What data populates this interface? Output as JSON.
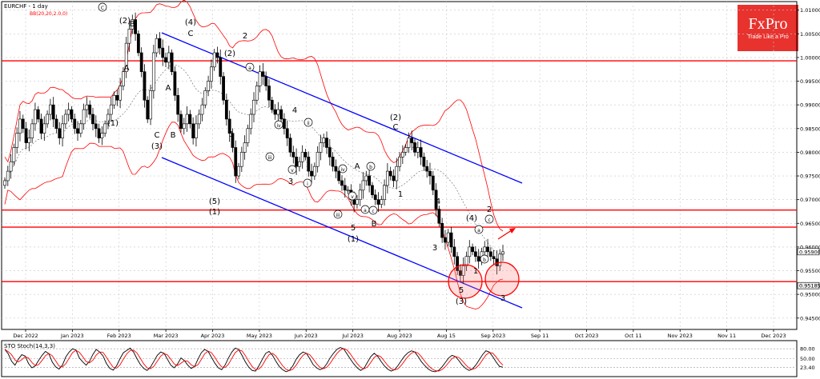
{
  "header": {
    "symbol": "EURCHF - 1 day",
    "indicator": "BB(20,20,2.0,0)"
  },
  "logo": {
    "brand": "FxPro",
    "tagline": "Trade Like a Pro"
  },
  "colors": {
    "bull_candle": "#ffffff",
    "bear_candle": "#000000",
    "sr_line": "#ff0000",
    "channel": "#0000ff",
    "bands": "#ff0000",
    "sto_main": "#000000",
    "sto_signal": "#ff0000"
  },
  "chart_data": {
    "type": "candlestick",
    "title": "EURCHF - 1 day",
    "y_ticks": [
      "1.01000",
      "1.00500",
      "1.00000",
      "0.99500",
      "0.99000",
      "0.98500",
      "0.98000",
      "0.97500",
      "0.97000",
      "0.96500",
      "0.96000",
      "0.95500",
      "0.95000",
      "0.94500"
    ],
    "ylim": [
      0.9426,
      1.0118
    ],
    "x_ticks": [
      "Dec 2022",
      "Jan 2023",
      "Feb 2023",
      "Mar 2023",
      "Apr 2023",
      "May 2023",
      "Jun 2023",
      "Jul 2023",
      "Aug 2023",
      "Aug 15",
      "Sep 2023",
      "Sep 11",
      "Oct 2023",
      "Oct 11",
      "Nov 2023",
      "Nov 11",
      "Dec 2023"
    ],
    "price_tags": [
      "0.95900",
      "0.95185"
    ],
    "support_resistance": [
      0.9993,
      0.9678,
      0.9642,
      0.9527
    ],
    "closes": [
      0.974,
      0.976,
      0.978,
      0.981,
      0.984,
      0.987,
      0.985,
      0.982,
      0.983,
      0.986,
      0.989,
      0.987,
      0.984,
      0.986,
      0.988,
      0.99,
      0.987,
      0.985,
      0.983,
      0.986,
      0.988,
      0.989,
      0.987,
      0.985,
      0.984,
      0.986,
      0.989,
      0.99,
      0.988,
      0.986,
      0.985,
      0.983,
      0.984,
      0.986,
      0.988,
      0.99,
      0.992,
      0.991,
      0.994,
      0.997,
      1.003,
      1.006,
      1.008,
      1.005,
      1.001,
      0.997,
      0.991,
      0.987,
      0.993,
      1.001,
      1.004,
      1.002,
      1.0,
      0.999,
      1.001,
      0.997,
      0.992,
      0.988,
      0.985,
      0.986,
      0.988,
      0.986,
      0.983,
      0.986,
      0.988,
      0.99,
      0.993,
      0.995,
      0.998,
      1.001,
      1.0,
      0.996,
      0.991,
      0.987,
      0.984,
      0.981,
      0.975,
      0.977,
      0.98,
      0.982,
      0.985,
      0.988,
      0.991,
      0.994,
      0.997,
      0.996,
      0.994,
      0.991,
      0.989,
      0.988,
      0.989,
      0.987,
      0.985,
      0.983,
      0.98,
      0.979,
      0.977,
      0.978,
      0.98,
      0.979,
      0.976,
      0.975,
      0.977,
      0.98,
      0.982,
      0.983,
      0.981,
      0.979,
      0.977,
      0.976,
      0.974,
      0.973,
      0.972,
      0.972,
      0.97,
      0.969,
      0.97,
      0.972,
      0.974,
      0.975,
      0.973,
      0.971,
      0.97,
      0.969,
      0.97,
      0.973,
      0.976,
      0.975,
      0.974,
      0.977,
      0.979,
      0.98,
      0.981,
      0.983,
      0.982,
      0.98,
      0.981,
      0.979,
      0.977,
      0.976,
      0.975,
      0.972,
      0.968,
      0.965,
      0.962,
      0.961,
      0.963,
      0.96,
      0.958,
      0.955,
      0.954,
      0.956,
      0.958,
      0.96,
      0.959,
      0.958,
      0.957,
      0.959,
      0.96,
      0.959,
      0.958,
      0.9575,
      0.956,
      0.9585,
      0.959
    ]
  },
  "elliott_labels": [
    "(C)",
    "(2)",
    "B",
    "A",
    "(1)",
    "C",
    "(3)",
    "B",
    "A",
    "(4)",
    "C",
    "2",
    "(2)",
    "(a)",
    "1",
    "(5)",
    "(1)",
    "(ii)",
    "4",
    "(iii)",
    "(iv)",
    "(i)",
    "(v)",
    "3",
    "(iv)",
    "(v)",
    "(iii)",
    "(a)",
    "(c)",
    "(b)",
    "A",
    "5",
    "(1)",
    "B",
    "(2)",
    "C",
    "2",
    "1",
    "4",
    "3",
    "5",
    "(3)",
    "1",
    "(4)",
    "(a)",
    "(b)",
    "2",
    "(c)",
    "3"
  ],
  "stochastic": {
    "label": "STO Stoch(14,3,3)",
    "levels": [
      "80.00",
      "50.00",
      "23.40"
    ],
    "main": [
      78,
      65,
      42,
      30,
      48,
      62,
      58,
      35,
      22,
      28,
      45,
      60,
      72,
      65,
      40,
      25,
      18,
      30,
      55,
      70,
      80,
      76,
      52,
      40,
      30,
      42,
      63,
      78,
      70,
      58,
      35,
      20,
      15,
      28,
      50,
      68,
      75,
      82,
      70,
      50,
      32,
      20,
      14,
      24,
      42,
      60,
      70,
      66,
      48,
      30,
      22,
      34,
      52,
      44,
      30,
      20,
      26,
      48,
      68,
      78,
      72,
      54,
      36,
      22,
      16,
      30,
      52,
      70,
      82,
      78,
      60,
      40,
      24,
      14,
      12,
      28,
      48,
      66,
      72,
      60,
      42,
      26,
      16,
      10,
      14,
      28,
      48,
      62,
      70,
      66,
      50,
      32,
      22,
      16,
      20,
      34,
      52,
      66,
      78,
      84,
      80,
      64,
      48,
      34,
      22,
      14,
      20,
      38,
      56,
      66,
      58,
      42,
      28,
      18,
      12,
      16,
      28,
      44,
      58,
      68,
      74,
      70,
      56,
      40,
      28,
      18,
      12,
      10,
      14,
      24,
      38,
      52,
      60,
      56,
      44,
      30,
      20,
      14,
      18,
      30,
      46,
      62,
      74,
      70,
      56,
      40,
      26,
      24
    ]
  }
}
